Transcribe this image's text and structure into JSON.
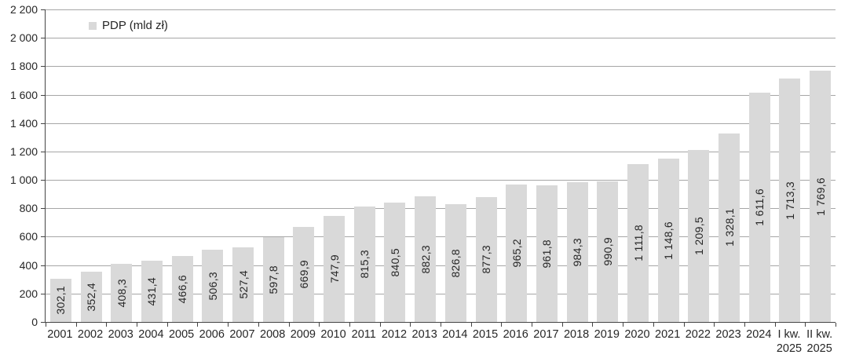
{
  "chart_data": {
    "type": "bar",
    "title": "",
    "legend": "PDP (mld zł)",
    "legend_position": "top-left",
    "unit": "mld zł",
    "categories": [
      [
        "2001"
      ],
      [
        "2002"
      ],
      [
        "2003"
      ],
      [
        "2004"
      ],
      [
        "2005"
      ],
      [
        "2006"
      ],
      [
        "2007"
      ],
      [
        "2008"
      ],
      [
        "2009"
      ],
      [
        "2010"
      ],
      [
        "2011"
      ],
      [
        "2012"
      ],
      [
        "2013"
      ],
      [
        "2014"
      ],
      [
        "2015"
      ],
      [
        "2016"
      ],
      [
        "2017"
      ],
      [
        "2018"
      ],
      [
        "2019"
      ],
      [
        "2020"
      ],
      [
        "2021"
      ],
      [
        "2022"
      ],
      [
        "2023"
      ],
      [
        "2024"
      ],
      [
        "I kw.",
        "2025"
      ],
      [
        "II kw.",
        "2025"
      ]
    ],
    "values": [
      302.1,
      352.4,
      408.3,
      431.4,
      466.6,
      506.3,
      527.4,
      597.8,
      669.9,
      747.9,
      815.3,
      840.5,
      882.3,
      826.8,
      877.3,
      965.2,
      961.8,
      984.3,
      990.9,
      1111.8,
      1148.6,
      1209.5,
      1328.1,
      1611.6,
      1713.3,
      1769.6
    ],
    "value_labels": [
      "302,1",
      "352,4",
      "408,3",
      "431,4",
      "466,6",
      "506,3",
      "527,4",
      "597,8",
      "669,9",
      "747,9",
      "815,3",
      "840,5",
      "882,3",
      "826,8",
      "877,3",
      "965,2",
      "961,8",
      "984,3",
      "990,9",
      "1 111,8",
      "1 148,6",
      "1 209,5",
      "1 328,1",
      "1 611,6",
      "1 713,3",
      "1 769,6"
    ],
    "ylim": [
      0,
      2200
    ],
    "yticks": [
      {
        "value": 0,
        "label": "0"
      },
      {
        "value": 200,
        "label": "200"
      },
      {
        "value": 400,
        "label": "400"
      },
      {
        "value": 600,
        "label": "600"
      },
      {
        "value": 800,
        "label": "800"
      },
      {
        "value": 1000,
        "label": "1 000"
      },
      {
        "value": 1200,
        "label": "1 200"
      },
      {
        "value": 1400,
        "label": "1 400"
      },
      {
        "value": 1600,
        "label": "1 600"
      },
      {
        "value": 1800,
        "label": "1 800"
      },
      {
        "value": 2000,
        "label": "2 000"
      },
      {
        "value": 2200,
        "label": "2 200"
      }
    ],
    "grid": true,
    "colors": {
      "bar_fill": "#d9d9d9",
      "gridline": "#a6a6a6",
      "axis": "#444444",
      "text": "#262626"
    }
  }
}
